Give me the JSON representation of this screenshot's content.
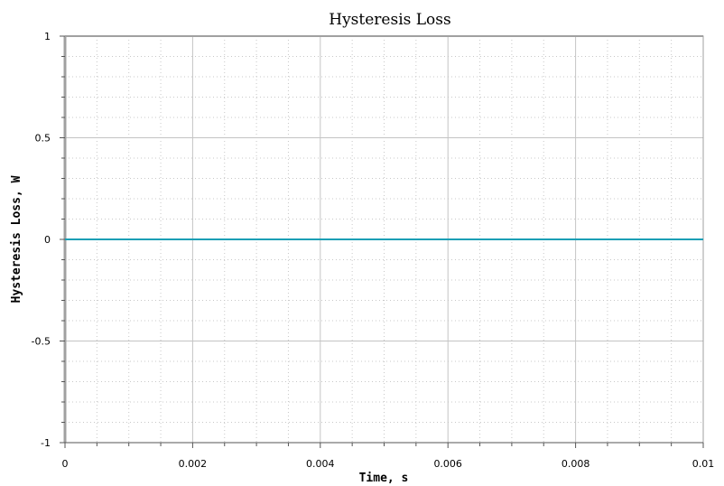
{
  "chart_data": {
    "type": "line",
    "title": "Hysteresis Loss",
    "xlabel": "Time, s",
    "ylabel": "Hysteresis Loss, W",
    "xlim": [
      0,
      0.01
    ],
    "ylim": [
      -1,
      1
    ],
    "xticks": [
      {
        "value": 0,
        "label": "0"
      },
      {
        "value": 0.002,
        "label": "0.002"
      },
      {
        "value": 0.004,
        "label": "0.004"
      },
      {
        "value": 0.006,
        "label": "0.006"
      },
      {
        "value": 0.008,
        "label": "0.008"
      },
      {
        "value": 0.01,
        "label": "0.01"
      }
    ],
    "yticks": [
      {
        "value": 1,
        "label": "1"
      },
      {
        "value": 0.5,
        "label": "0.5"
      },
      {
        "value": 0,
        "label": "0"
      },
      {
        "value": -0.5,
        "label": "-0.5"
      },
      {
        "value": -1,
        "label": "-1"
      }
    ],
    "grid": true,
    "series": [
      {
        "color": "#1a9fb5",
        "x": [
          0,
          0.01
        ],
        "y": [
          0,
          0
        ]
      }
    ]
  }
}
